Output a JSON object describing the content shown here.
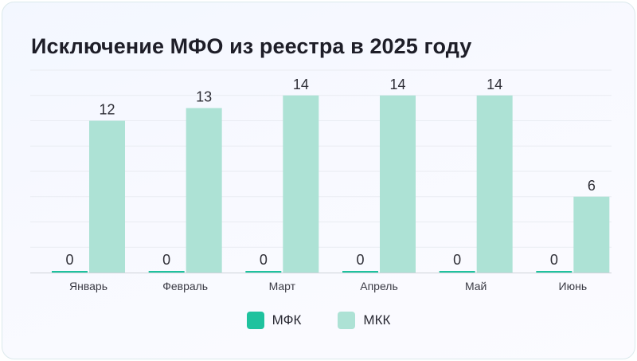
{
  "chart_data": {
    "type": "bar",
    "title": "Исключение МФО из реестра в 2025 году",
    "categories": [
      "Январь",
      "Февраль",
      "Март",
      "Апрель",
      "Май",
      "Июнь"
    ],
    "series": [
      {
        "name": "МФК",
        "values": [
          0,
          0,
          0,
          0,
          0,
          0
        ],
        "color": "#1fc29e"
      },
      {
        "name": "МКК",
        "values": [
          12,
          13,
          14,
          14,
          14,
          6
        ],
        "color": "#ade2d5"
      }
    ],
    "ylim": [
      0,
      16
    ],
    "grid": true,
    "legend": "bottom-center"
  }
}
